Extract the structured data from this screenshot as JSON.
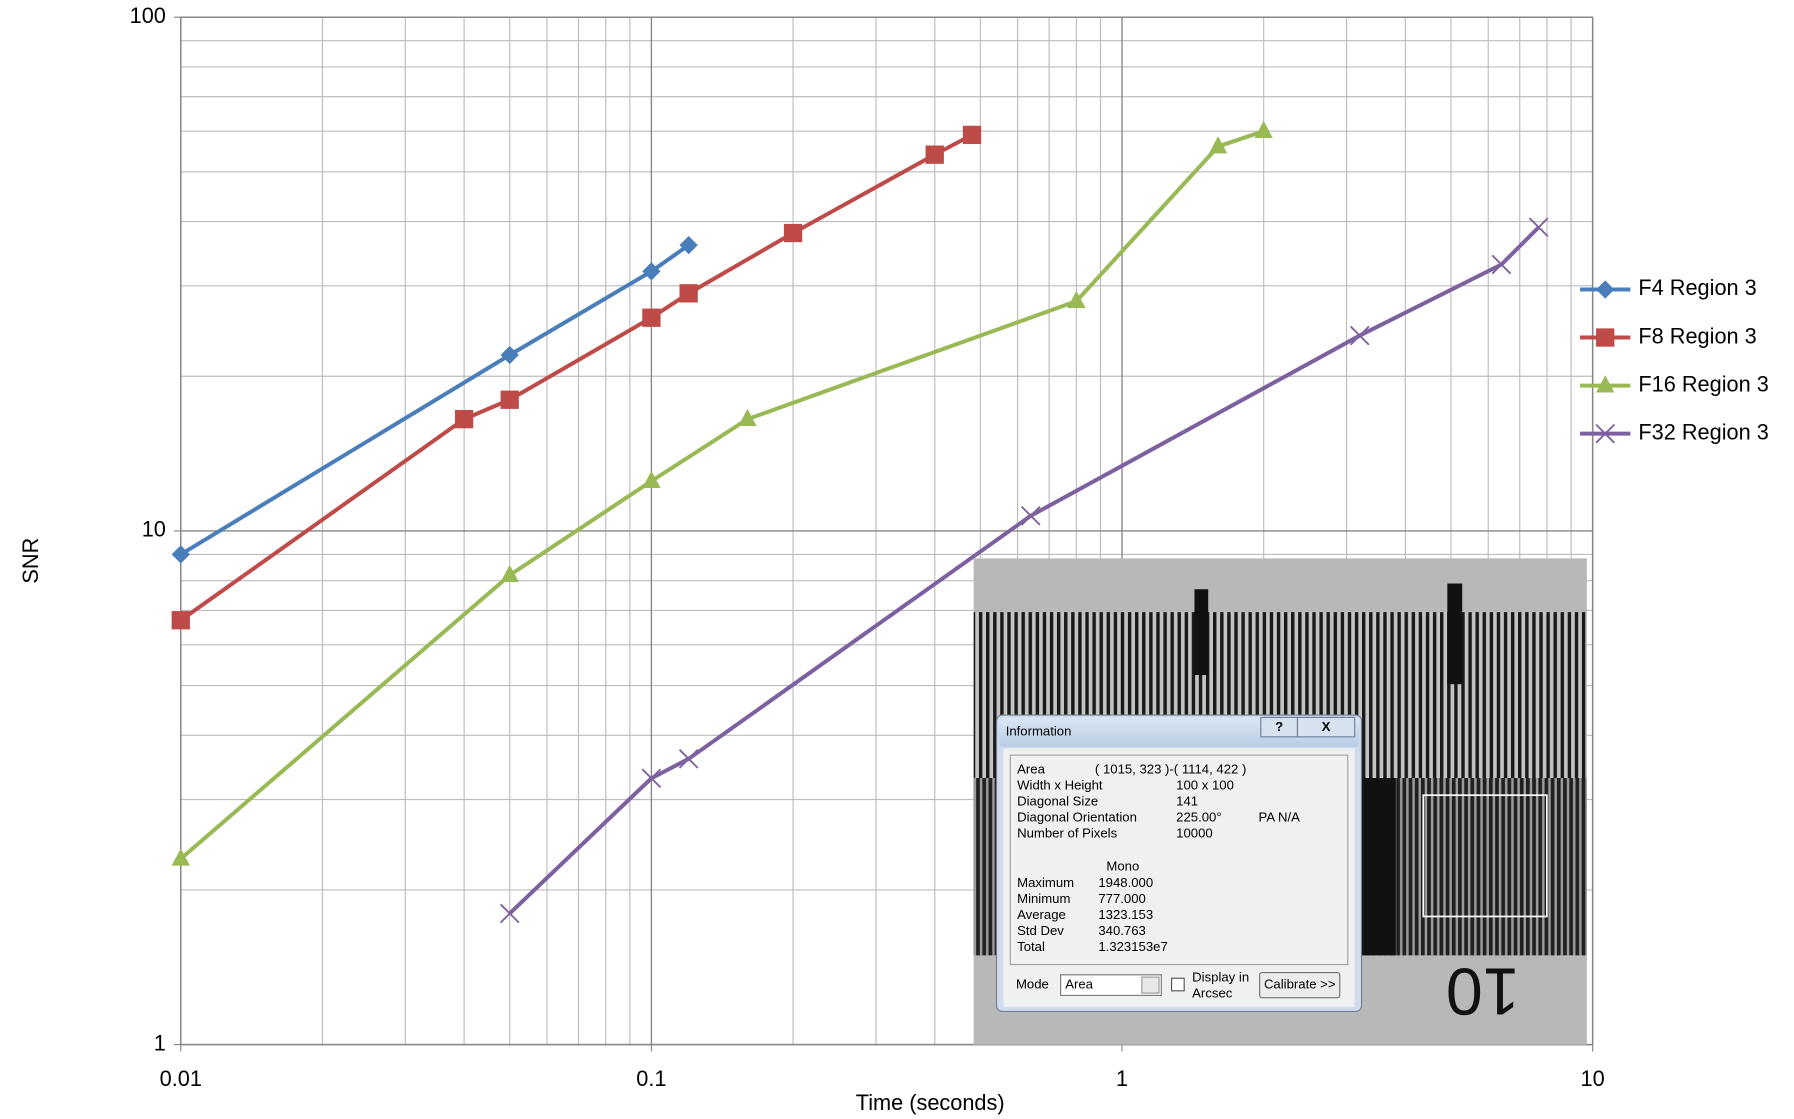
{
  "chart_data": {
    "type": "line",
    "x_label": "Time (seconds)",
    "y_label": "SNR",
    "log_x": true,
    "log_y": true,
    "grid": true,
    "minor_grid": true,
    "legend": "right",
    "xlim": [
      0.01,
      10
    ],
    "xticks": [
      0.01,
      0.1,
      1,
      10
    ],
    "ylim": [
      1,
      100
    ],
    "yticks": [
      1,
      10,
      100
    ],
    "series": [
      {
        "name": "F4 Region 3",
        "color": "#4a7ebb",
        "marker": "diamond",
        "x": [
          0.01,
          0.05,
          0.1,
          0.12
        ],
        "values": [
          9,
          22,
          32,
          36
        ]
      },
      {
        "name": "F8 Region 3",
        "color": "#be4b48",
        "marker": "square",
        "x": [
          0.01,
          0.04,
          0.05,
          0.1,
          0.12,
          0.2,
          0.4,
          0.48
        ],
        "values": [
          6.7,
          16.5,
          18,
          26,
          29,
          38,
          54,
          59
        ]
      },
      {
        "name": "F16 Region 3",
        "color": "#98b954",
        "marker": "triangle",
        "x": [
          0.01,
          0.05,
          0.1,
          0.16,
          0.8,
          1.6,
          2
        ],
        "values": [
          2.3,
          8.2,
          12.5,
          16.5,
          28,
          56,
          60
        ]
      },
      {
        "name": "F32 Region 3",
        "color": "#7d60a0",
        "marker": "x",
        "x": [
          0.05,
          0.1,
          0.12,
          0.64,
          3.2,
          6.4,
          7.68
        ],
        "values": [
          1.8,
          3.3,
          3.6,
          10.7,
          24,
          33,
          39
        ]
      }
    ]
  },
  "inset": {
    "ruler_label": "10",
    "dialog": {
      "title": "Information",
      "help_button": "?",
      "close_button": "X",
      "rows": [
        [
          "Area",
          "( 1015, 323 )-( 1114, 422 )"
        ],
        [
          "Width x Height",
          "100 x 100"
        ],
        [
          "Diagonal Size",
          "141"
        ],
        [
          "Diagonal Orientation",
          "225.00°",
          "PA  N/A"
        ],
        [
          "Number of Pixels",
          "10000"
        ]
      ],
      "stats_header": "Mono",
      "stats": [
        [
          "Maximum",
          "1948.000"
        ],
        [
          "Minimum",
          "777.000"
        ],
        [
          "Average",
          "1323.153"
        ],
        [
          "Std Dev",
          "340.763"
        ],
        [
          "Total",
          "1.323153e7"
        ]
      ],
      "mode_label": "Mode",
      "mode_value": "Area",
      "checkbox_label": [
        "Display in",
        "Arcsec"
      ],
      "calibrate_button": "Calibrate >>"
    }
  }
}
